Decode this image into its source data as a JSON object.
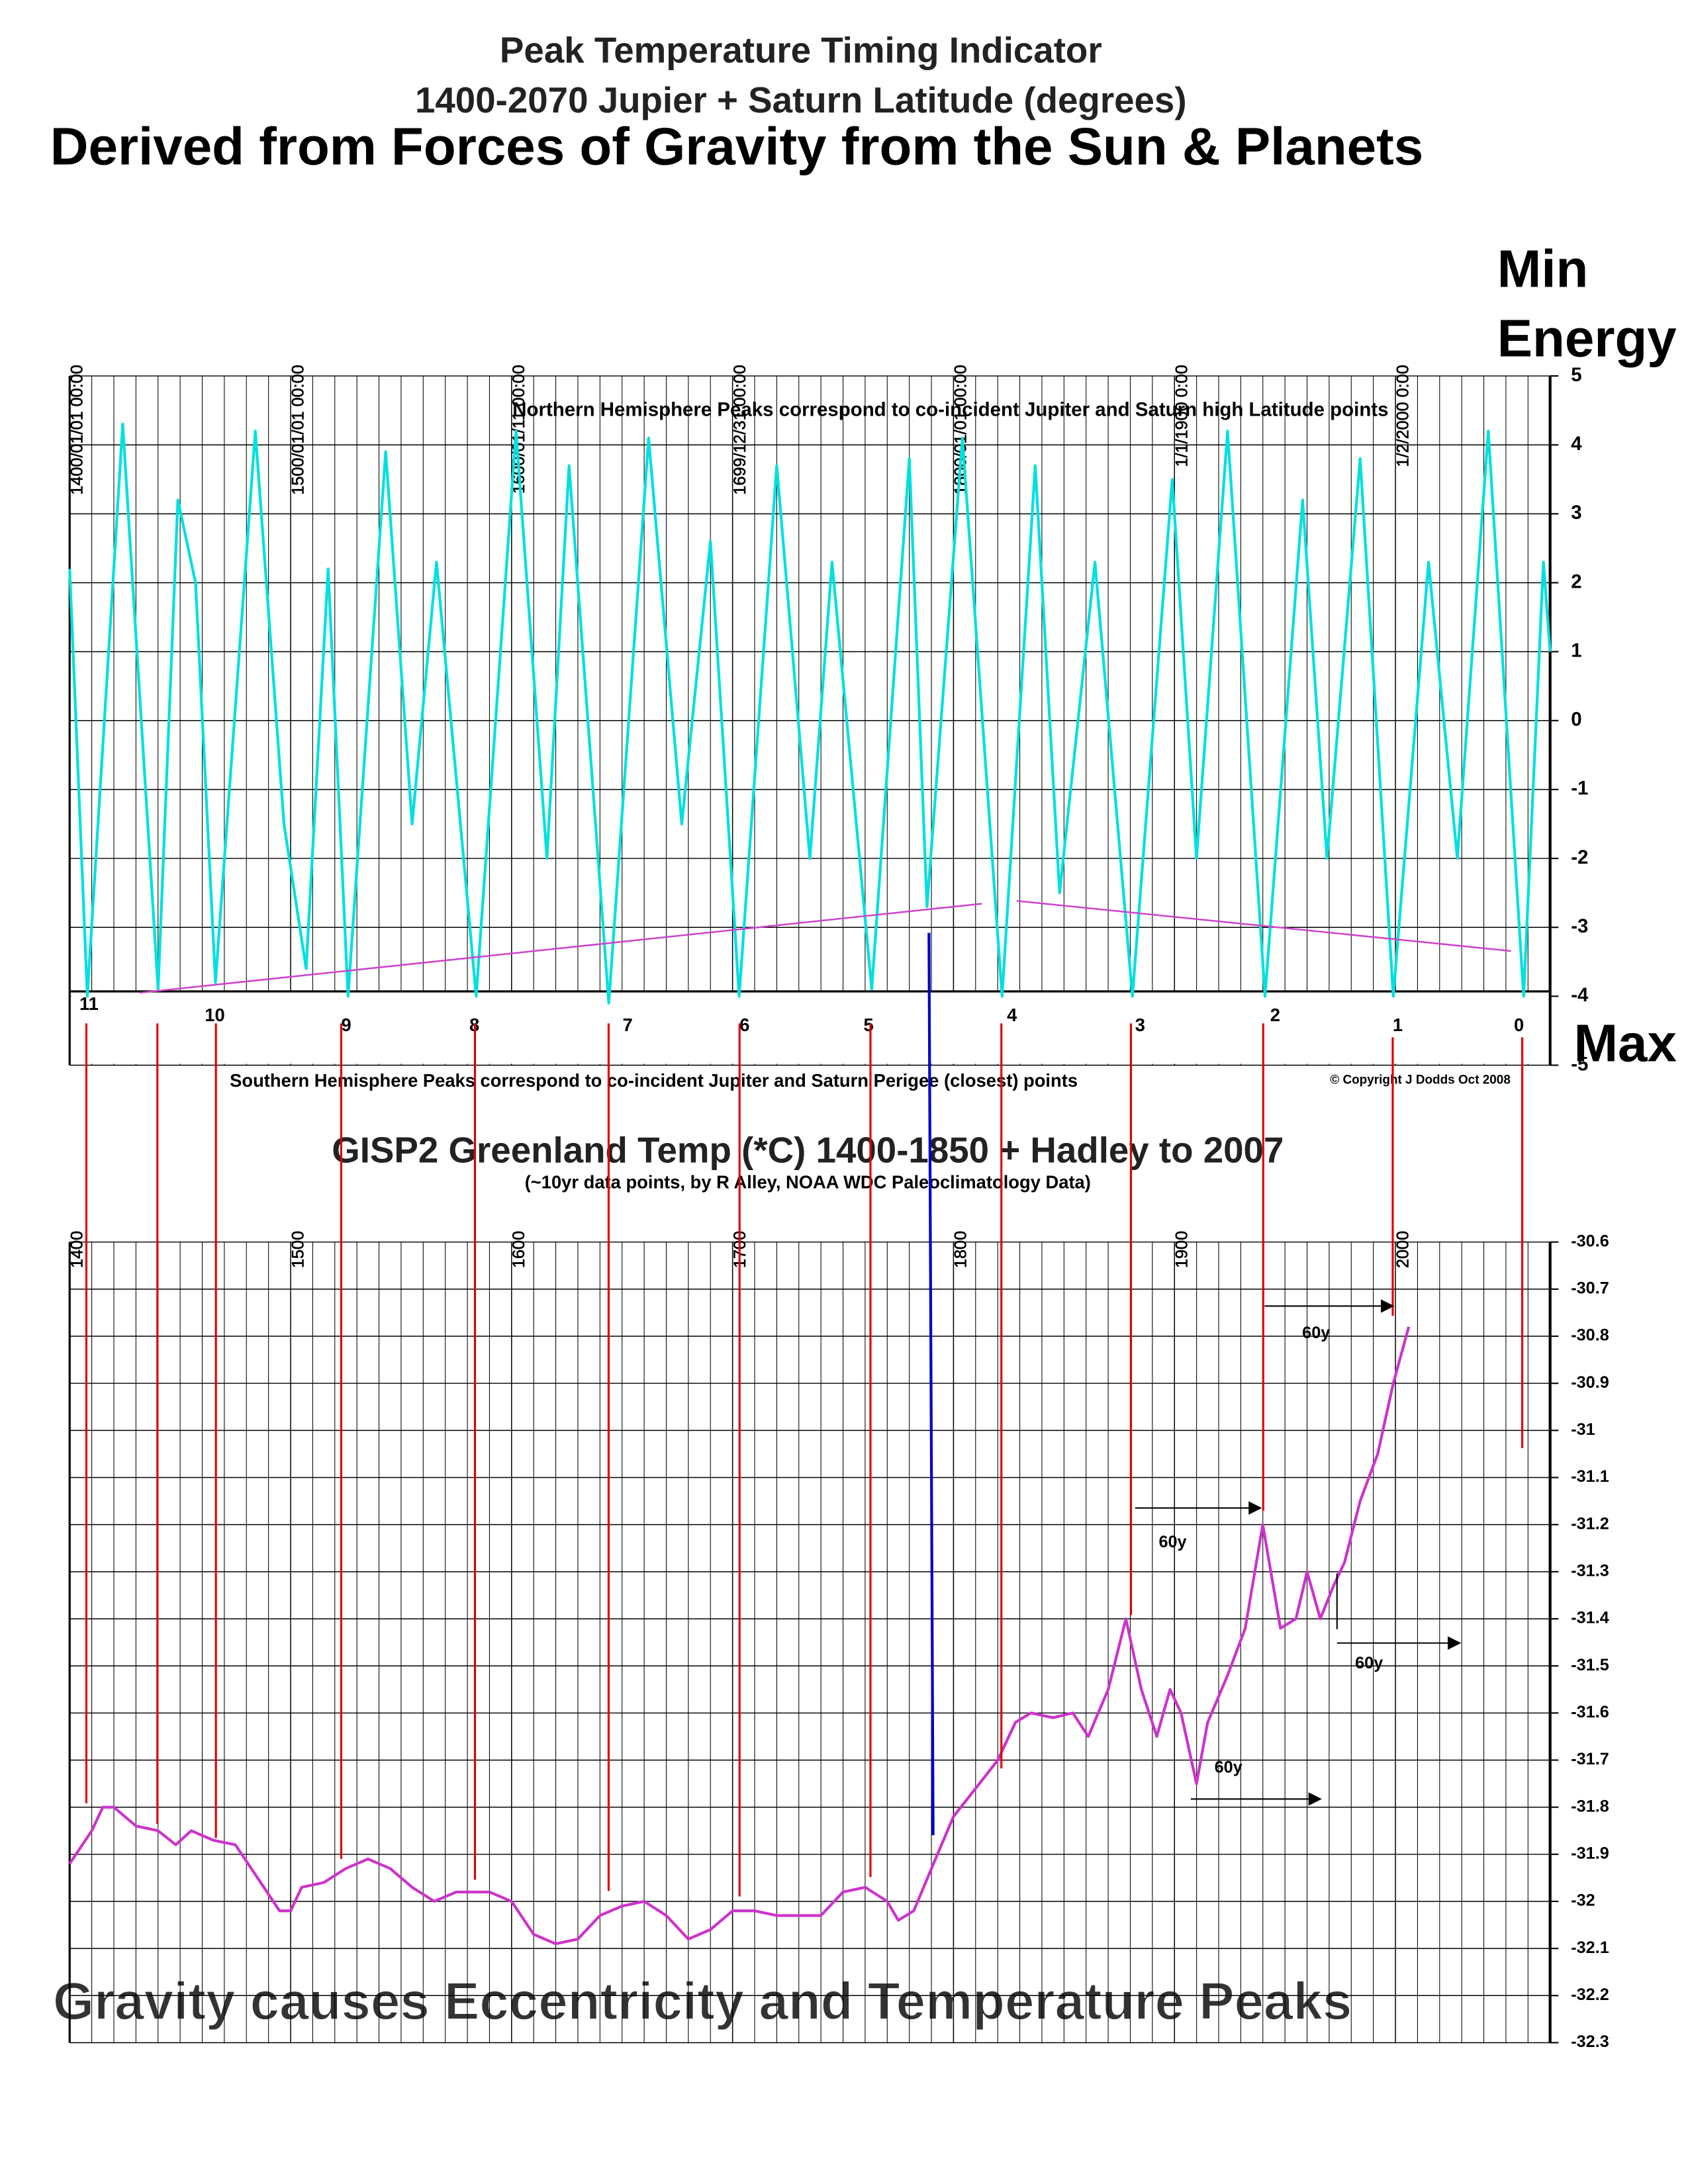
{
  "header": {
    "title": "Peak Temperature Timing Indicator",
    "subtitle": "1400-2070 Jupier + Saturn Latitude (degrees)",
    "heading": "Derived from Forces of Gravity from the Sun & Planets",
    "side_labels": [
      "Min",
      "Energy",
      "Max"
    ],
    "footer": "Gravity causes Eccentricity and  Temperature Peaks"
  },
  "chart_data": [
    {
      "type": "line",
      "color": "#00e0e0",
      "annotations": [
        "Northern Hemisphere Peaks correspond to co-incident Jupiter and Saturn high Latitude points",
        "Southern Hemisphere Peaks correspond to co-incident Jupiter and Saturn Perigee (closest) points",
        "© Copyright J Dodds Oct 2008"
      ],
      "trough_labels": [
        "11",
        "10",
        "9",
        "8",
        "7",
        "6",
        "5",
        "4",
        "3",
        "2",
        "1",
        "0"
      ],
      "x": [
        1400,
        1408,
        1424,
        1440,
        1449,
        1457,
        1466,
        1484,
        1497,
        1507,
        1517,
        1526,
        1543,
        1555,
        1566,
        1584,
        1602,
        1616,
        1626,
        1644,
        1662,
        1677,
        1690,
        1703,
        1720,
        1735,
        1745,
        1763,
        1780,
        1788,
        1804,
        1822,
        1837,
        1848,
        1864,
        1881,
        1899,
        1910,
        1924,
        1941,
        1958,
        1969,
        1984,
        1999,
        2015,
        2028,
        2042,
        2058,
        2067,
        2070
      ],
      "values": [
        2.2,
        -4.0,
        4.3,
        -3.9,
        3.2,
        2.0,
        -3.8,
        4.2,
        -1.5,
        -3.6,
        2.2,
        -4.0,
        3.9,
        -1.5,
        2.3,
        -4.0,
        4.2,
        -2.0,
        3.7,
        -4.1,
        4.1,
        -1.5,
        2.6,
        -4.0,
        3.7,
        -2.0,
        2.3,
        -3.9,
        3.8,
        -2.7,
        4.1,
        -4.0,
        3.7,
        -2.5,
        2.3,
        -4.0,
        3.5,
        -2.0,
        4.2,
        -4.0,
        3.2,
        -2.0,
        3.8,
        -4.0,
        2.3,
        -2.0,
        4.2,
        -4.0,
        2.3,
        1.0
      ],
      "xlim": [
        1400,
        2070
      ],
      "xticks": [
        {
          "value": 1400,
          "label": "1400/01/01 00:00"
        },
        {
          "value": 1500,
          "label": "1500/01/01 00:00"
        },
        {
          "value": 1600,
          "label": "1600/01/11 00:00"
        },
        {
          "value": 1700,
          "label": "1699/12/31 00:00"
        },
        {
          "value": 1800,
          "label": "1800/01/01 00:00"
        },
        {
          "value": 1900,
          "label": "1/1/1900 0:00"
        },
        {
          "value": 2000,
          "label": "1/2/2000 0:00"
        }
      ],
      "ylim": [
        -5,
        5
      ],
      "yticks": [
        5,
        4,
        3,
        2,
        1,
        0,
        -1,
        -2,
        -3,
        -4,
        -5
      ],
      "grid": true
    },
    {
      "type": "line",
      "title": "GISP2 Greenland Temp (*C) 1400-1850 + Hadley to 2007",
      "subtitle": "(~10yr data points, by R Alley, NOAA WDC Paleoclimatology Data)",
      "color": "#cc33cc",
      "annotations": [
        "60y",
        "60y",
        "60y",
        "60y"
      ],
      "x": [
        1400,
        1410,
        1415,
        1420,
        1430,
        1440,
        1448,
        1455,
        1465,
        1475,
        1485,
        1495,
        1500,
        1505,
        1515,
        1525,
        1535,
        1545,
        1555,
        1565,
        1575,
        1590,
        1600,
        1610,
        1620,
        1630,
        1640,
        1650,
        1660,
        1670,
        1680,
        1690,
        1700,
        1710,
        1720,
        1730,
        1740,
        1750,
        1760,
        1770,
        1775,
        1782,
        1790,
        1800,
        1810,
        1820,
        1828,
        1835,
        1845,
        1854,
        1861,
        1870,
        1878,
        1885,
        1892,
        1898,
        1903,
        1910,
        1915,
        1924,
        1932,
        1940,
        1948,
        1955,
        1960,
        1966,
        1972,
        1977,
        1984,
        1992,
        1999,
        2006
      ],
      "values": [
        -31.92,
        -31.85,
        -31.8,
        -31.8,
        -31.84,
        -31.85,
        -31.88,
        -31.85,
        -31.87,
        -31.88,
        -31.95,
        -32.02,
        -32.02,
        -31.97,
        -31.96,
        -31.93,
        -31.91,
        -31.93,
        -31.97,
        -32.0,
        -31.98,
        -31.98,
        -32.0,
        -32.07,
        -32.09,
        -32.08,
        -32.03,
        -32.01,
        -32.0,
        -32.03,
        -32.08,
        -32.06,
        -32.02,
        -32.02,
        -32.03,
        -32.03,
        -32.03,
        -31.98,
        -31.97,
        -32.0,
        -32.04,
        -32.02,
        -31.93,
        -31.82,
        -31.76,
        -31.7,
        -31.62,
        -31.6,
        -31.61,
        -31.6,
        -31.65,
        -31.55,
        -31.4,
        -31.55,
        -31.65,
        -31.55,
        -31.6,
        -31.75,
        -31.62,
        -31.52,
        -31.42,
        -31.2,
        -31.42,
        -31.4,
        -31.3,
        -31.4,
        -31.33,
        -31.28,
        -31.15,
        -31.05,
        -30.9,
        -30.78
      ],
      "xlim": [
        1400,
        2070
      ],
      "xticks": [
        1400,
        1500,
        1600,
        1700,
        1800,
        1900,
        2000
      ],
      "ylim": [
        -32.3,
        -30.6
      ],
      "yticks": [
        -30.6,
        -30.7,
        -30.8,
        -30.9,
        -31,
        -31.1,
        -31.2,
        -31.3,
        -31.4,
        -31.5,
        -31.6,
        -31.7,
        -31.8,
        -31.9,
        -32,
        -32.1,
        -32.2,
        -32.3
      ],
      "grid": true
    }
  ]
}
